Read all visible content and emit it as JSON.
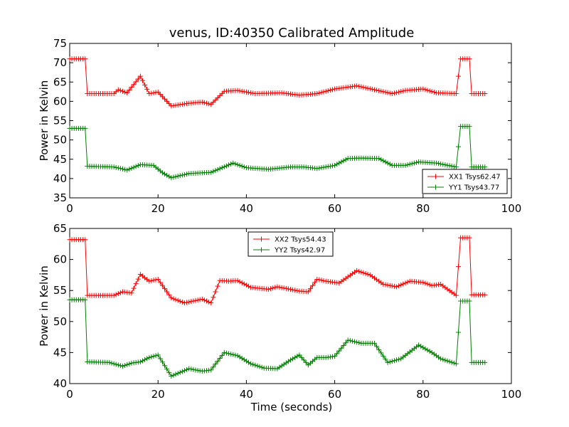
{
  "figure": {
    "title": "venus, ID:40350 Calibrated Amplitude",
    "xlabel": "Time (seconds)"
  },
  "chart_data": [
    {
      "type": "line",
      "title": "venus, ID:40350 Calibrated Amplitude",
      "xlabel": "",
      "ylabel": "Power in Kelvin",
      "xlim": [
        0,
        100
      ],
      "ylim": [
        35,
        75
      ],
      "xticks": [
        "0",
        "20",
        "40",
        "60",
        "80",
        "100"
      ],
      "yticks": [
        "35",
        "40",
        "45",
        "50",
        "55",
        "60",
        "65",
        "70",
        "75"
      ],
      "grid": false,
      "legend_position": "lower-right",
      "marker": "plus",
      "series": [
        {
          "name": "XX1 Tsys62.47",
          "color": "#ff0000",
          "x": [
            0,
            3.5,
            4,
            94,
            10,
            11,
            13,
            16,
            18,
            20,
            23,
            27,
            30,
            32,
            35,
            38,
            42,
            48,
            52,
            56,
            60,
            65,
            69,
            73,
            76,
            80,
            83,
            87.5,
            88.5,
            90.5,
            91,
            94
          ],
          "y": [
            71,
            71,
            62,
            62,
            62,
            63,
            62.2,
            66.5,
            62,
            62.4,
            58.8,
            59.5,
            59.8,
            59.2,
            62.6,
            62.8,
            62,
            62.2,
            61.6,
            62,
            63.2,
            64,
            63,
            62,
            62.8,
            63.2,
            62.2,
            62,
            71,
            71,
            62,
            62
          ]
        },
        {
          "name": "YY1 Tsys43.77",
          "color": "#008000",
          "x": [
            0,
            3.5,
            4,
            10,
            13,
            16,
            19,
            21,
            23,
            27,
            32,
            37,
            40,
            45,
            50,
            53,
            56,
            60,
            63,
            66,
            70,
            73,
            76,
            79,
            83,
            87.5,
            88.5,
            90.5,
            91,
            94
          ],
          "y": [
            53,
            53,
            43.2,
            43,
            42.2,
            43.6,
            43.4,
            41.5,
            40.2,
            41.3,
            41.6,
            44,
            42.8,
            42.4,
            43,
            43,
            42.6,
            43.4,
            45.2,
            45.3,
            45.2,
            43.4,
            43.4,
            44.3,
            44,
            43,
            53.5,
            53.5,
            43,
            43
          ]
        }
      ]
    },
    {
      "type": "line",
      "title": "",
      "xlabel": "Time (seconds)",
      "ylabel": "Power in Kelvin",
      "xlim": [
        0,
        100
      ],
      "ylim": [
        40,
        65
      ],
      "xticks": [
        "0",
        "20",
        "40",
        "60",
        "80",
        "100"
      ],
      "yticks": [
        "40",
        "45",
        "50",
        "55",
        "60",
        "65"
      ],
      "grid": false,
      "legend_position": "upper-center",
      "marker": "plus",
      "series": [
        {
          "name": "XX2 Tsys54.43",
          "color": "#ff0000",
          "x": [
            0,
            3.5,
            4,
            10,
            12,
            14,
            16,
            18,
            20,
            23,
            26,
            30,
            32,
            34,
            36,
            38,
            41,
            45,
            47,
            52,
            54,
            56,
            58,
            61,
            65,
            68,
            71,
            74,
            77,
            80,
            82,
            84,
            87.5,
            88.5,
            90.5,
            91,
            94
          ],
          "y": [
            63.2,
            63.2,
            54.2,
            54.2,
            54.8,
            54.6,
            57.6,
            56.5,
            56.8,
            53.8,
            53,
            53.6,
            53,
            56.6,
            56.5,
            56.6,
            55.5,
            55.2,
            55.6,
            54.9,
            54.8,
            56.8,
            56.5,
            56.2,
            58.2,
            57.5,
            56,
            55.6,
            56.5,
            56.3,
            55.8,
            56,
            54.2,
            63.5,
            63.5,
            54.3,
            54.3
          ]
        },
        {
          "name": "YY2 Tsys42.97",
          "color": "#008000",
          "x": [
            0,
            3.5,
            4,
            9,
            12,
            14,
            16,
            18,
            20,
            23,
            27,
            30,
            32,
            35,
            38,
            41,
            44,
            47,
            50,
            52,
            54,
            56,
            58,
            60,
            63,
            66,
            69,
            72,
            75,
            79,
            82,
            84,
            87.5,
            88.5,
            90.5,
            91,
            94
          ],
          "y": [
            53.5,
            53.5,
            43.5,
            43.4,
            42.8,
            43.3,
            43.5,
            44.2,
            44.6,
            41.2,
            42.4,
            42,
            42.2,
            45,
            44.5,
            43.2,
            42.5,
            42.4,
            43.8,
            44.6,
            43,
            44.2,
            44.2,
            44.4,
            47,
            46.5,
            46.5,
            43.4,
            44,
            46.2,
            45,
            44,
            43.2,
            53.3,
            53.3,
            43.4,
            43.4
          ]
        }
      ]
    }
  ]
}
